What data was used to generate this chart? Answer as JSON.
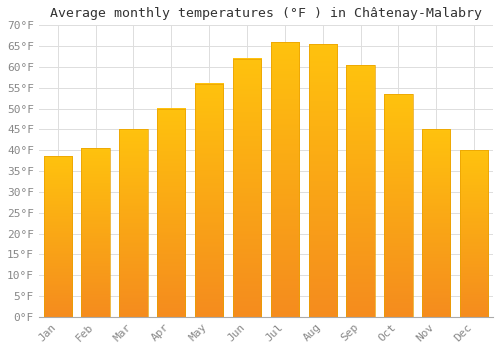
{
  "title": "Average monthly temperatures (°F ) in Châtenay-Malabry",
  "months": [
    "Jan",
    "Feb",
    "Mar",
    "Apr",
    "May",
    "Jun",
    "Jul",
    "Aug",
    "Sep",
    "Oct",
    "Nov",
    "Dec"
  ],
  "values": [
    38.5,
    40.5,
    45.0,
    50.0,
    56.0,
    62.0,
    66.0,
    65.5,
    60.5,
    53.5,
    45.0,
    40.0
  ],
  "bar_color_top": "#FFC20E",
  "bar_color_bottom": "#F58C1E",
  "bar_edge_color": "#E8A000",
  "ylim": [
    0,
    70
  ],
  "yticks": [
    0,
    5,
    10,
    15,
    20,
    25,
    30,
    35,
    40,
    45,
    50,
    55,
    60,
    65,
    70
  ],
  "background_color": "#FFFFFF",
  "grid_color": "#DDDDDD",
  "title_fontsize": 9.5,
  "tick_fontsize": 8,
  "title_font": "monospace",
  "tick_font": "monospace",
  "tick_color": "#888888"
}
